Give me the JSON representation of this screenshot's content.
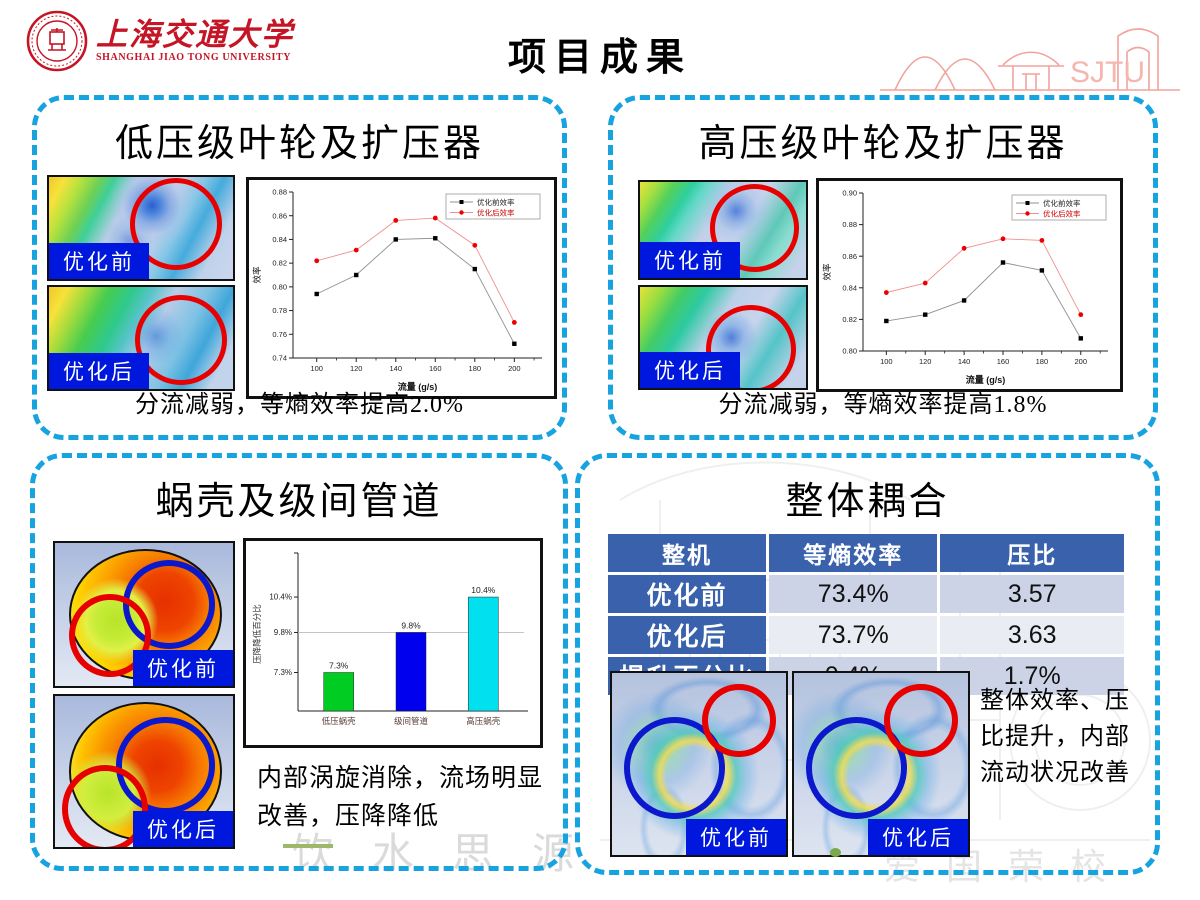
{
  "slide_title": "项目成果",
  "logo": {
    "name_cn": "上海交通大学",
    "name_en": "SHANGHAI JIAO TONG UNIVERSITY"
  },
  "sketch_label": "SJTU",
  "watermarks": {
    "motto_left": "饮水思源",
    "motto_right": "爱国荣校"
  },
  "colors": {
    "panel_border": "#17a2e0",
    "label_bg": "#0018dd",
    "table_header_bg": "#3a62ac",
    "band_dark": "#ccd3e6",
    "band_light": "#e9ecf3",
    "annotation_red": "#e60000",
    "annotation_blue": "#0b18cc",
    "logo_red": "#c41425"
  },
  "panels": {
    "low_pressure": {
      "title": "低压级叶轮及扩压器",
      "images": [
        {
          "label": "优化前"
        },
        {
          "label": "优化后"
        }
      ],
      "caption": "分流减弱，等熵效率提高2.0%"
    },
    "high_pressure": {
      "title": "高压级叶轮及扩压器",
      "images": [
        {
          "label": "优化前"
        },
        {
          "label": "优化后"
        }
      ],
      "caption": "分流减弱，等熵效率提高1.8%"
    },
    "volute": {
      "title": "蜗壳及级间管道",
      "images": [
        {
          "label": "优化前"
        },
        {
          "label": "优化后"
        }
      ],
      "caption": "内部涡旋消除，流场明显改善，压降降低"
    },
    "coupling": {
      "title": "整体耦合",
      "table": {
        "headers": [
          "整机",
          "等熵效率",
          "压比"
        ],
        "rows": [
          [
            "优化前",
            "73.4%",
            "3.57"
          ],
          [
            "优化后",
            "73.7%",
            "3.63"
          ],
          [
            "提升百分比",
            "0.4%",
            "1.7%"
          ]
        ]
      },
      "images": [
        {
          "label": "优化前"
        },
        {
          "label": "优化后"
        }
      ],
      "caption": "整体效率、压比提升，内部流动状况改善"
    }
  },
  "chart_data": [
    {
      "id": "low-pressure-efficiency",
      "type": "line",
      "x": [
        100,
        120,
        140,
        160,
        180,
        200
      ],
      "series": [
        {
          "name": "优化前效率",
          "color": "#000000",
          "line": "#909090",
          "marker": "square",
          "values": [
            0.794,
            0.81,
            0.84,
            0.841,
            0.815,
            0.752
          ]
        },
        {
          "name": "优化后效率",
          "color": "#ee0000",
          "line": "#f09090",
          "marker": "circle",
          "values": [
            0.822,
            0.831,
            0.856,
            0.858,
            0.835,
            0.77
          ]
        }
      ],
      "xlabel": "流量 (g/s)",
      "ylabel": "效率",
      "ylim": [
        0.74,
        0.88
      ],
      "yticks": [
        0.74,
        0.76,
        0.78,
        0.8,
        0.82,
        0.84,
        0.86,
        0.88
      ],
      "legend_position": "top-right",
      "grid": false
    },
    {
      "id": "high-pressure-efficiency",
      "type": "line",
      "x": [
        100,
        120,
        140,
        160,
        180,
        200
      ],
      "series": [
        {
          "name": "优化前效率",
          "color": "#000000",
          "line": "#909090",
          "marker": "square",
          "values": [
            0.819,
            0.823,
            0.832,
            0.856,
            0.851,
            0.808
          ]
        },
        {
          "name": "优化后效率",
          "color": "#ee0000",
          "line": "#f09090",
          "marker": "circle",
          "values": [
            0.837,
            0.843,
            0.865,
            0.871,
            0.87,
            0.823
          ]
        }
      ],
      "xlabel": "流量 (g/s)",
      "ylabel": "效率",
      "ylim": [
        0.8,
        0.9
      ],
      "yticks": [
        0.8,
        0.82,
        0.84,
        0.86,
        0.88,
        0.9
      ],
      "legend_position": "top-right",
      "grid": false
    },
    {
      "id": "pressure-drop-reduction",
      "type": "bar",
      "categories": [
        "低压蜗壳",
        "级间管道",
        "高压蜗壳"
      ],
      "values": [
        7.3,
        9.8,
        10.4
      ],
      "labels": [
        "7.3%",
        "9.8%",
        "10.4%"
      ],
      "bar_colors": [
        "#00cc22",
        "#0000ee",
        "#00e0ee"
      ],
      "ylabel": "压降降低百分比",
      "yticks": [
        "7.3%",
        "9.8%",
        "10.4%"
      ],
      "height_fracs": [
        0.25,
        0.51,
        0.74
      ],
      "centers": [
        0.18,
        0.5,
        0.82
      ],
      "gridline_at_index": 1
    }
  ]
}
